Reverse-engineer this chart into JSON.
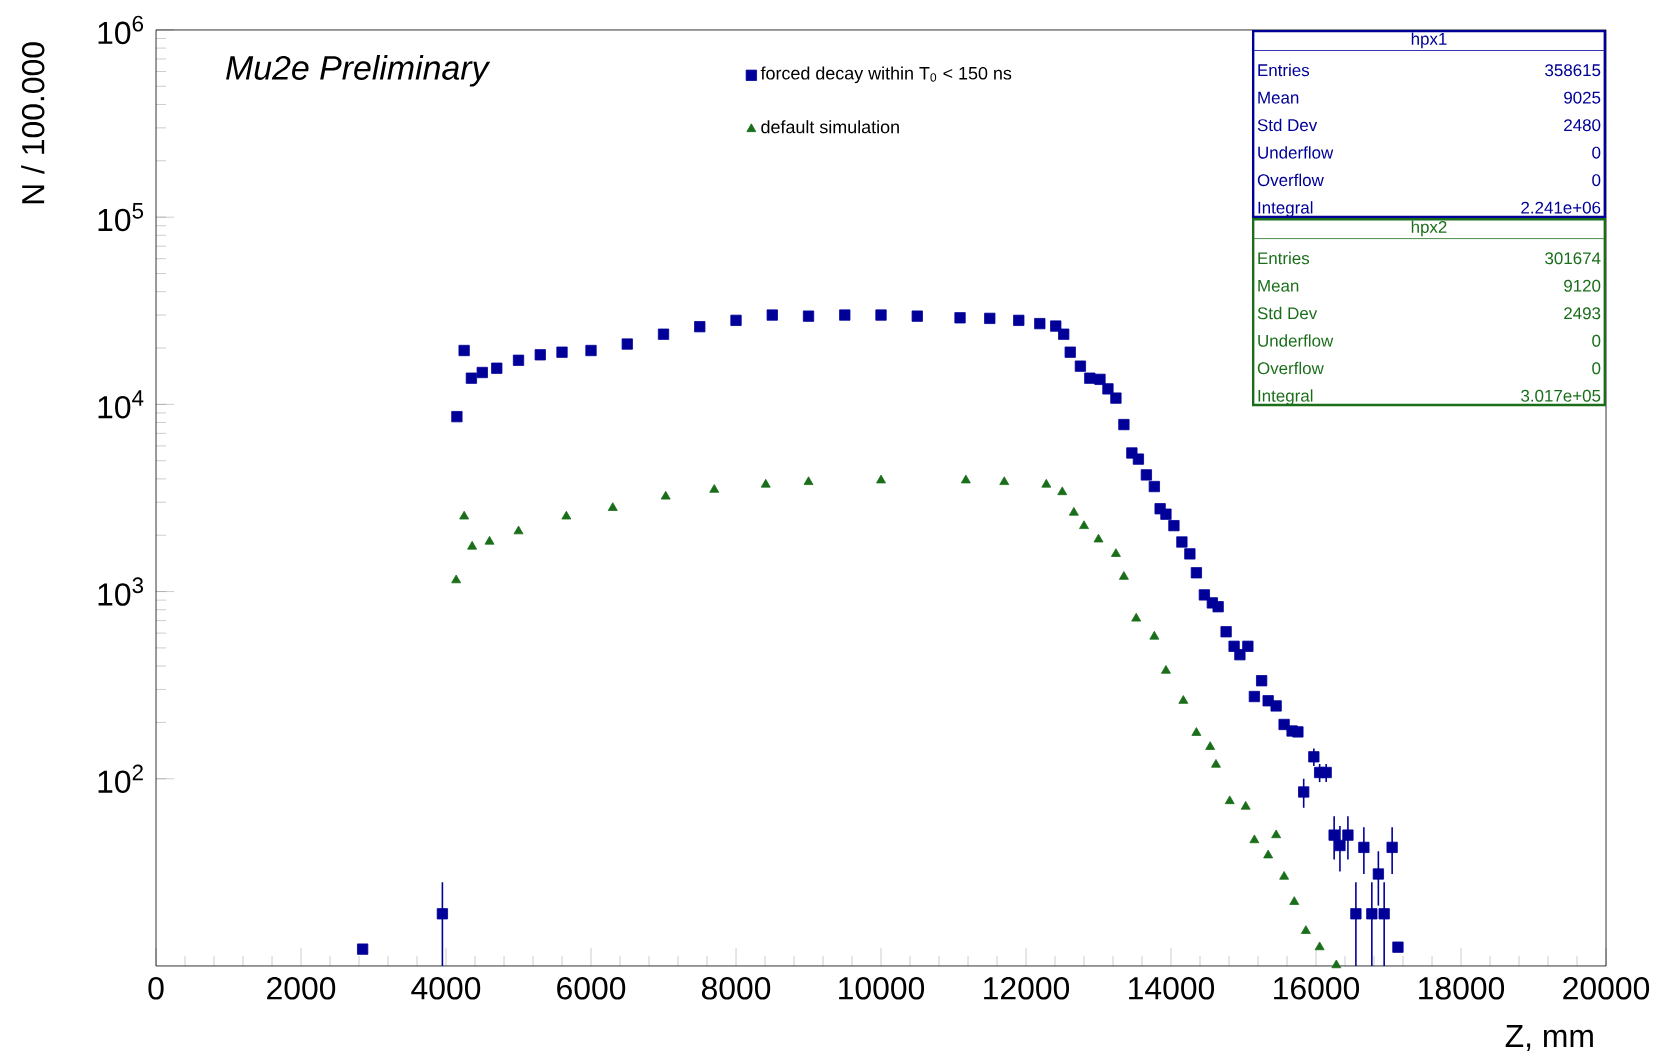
{
  "chart_data": {
    "type": "scatter",
    "xlabel": "Z, mm",
    "ylabel": "N /   100.000",
    "log": "y",
    "grid": false,
    "legend": "top",
    "xlim": [
      0,
      20000
    ],
    "xticks": [
      0,
      2000,
      4000,
      6000,
      8000,
      10000,
      12000,
      14000,
      16000,
      18000,
      20000
    ],
    "ylim": [
      10,
      1000000
    ],
    "yticks": [
      {
        "value": 100,
        "label": "10$^{2}$"
      },
      {
        "value": 1000,
        "label": "10$^{3}$"
      },
      {
        "value": 10000,
        "label": "10$^{4}$"
      },
      {
        "value": 100000,
        "label": "10$^{5}$"
      },
      {
        "value": 1000000,
        "label": "10$^{6}$"
      }
    ],
    "annotations": [
      "*Mu2e Preliminary*",
      "hpx1",
      "Entries",
      "358615",
      "Mean",
      "9025",
      "Std Dev",
      "2480",
      "Underflow",
      "0",
      "Overflow",
      "0",
      "Integral",
      "2.241e+06",
      "hpx2",
      "Entries",
      "301674",
      "Mean",
      "9120",
      "Std Dev",
      "2493",
      "Underflow",
      "0",
      "Overflow",
      "0",
      "Integral",
      "3.017e+05"
    ],
    "series": [
      {
        "name": "forced decay within T$_{0}$ < 150 ns",
        "color": "#000099",
        "marker": "square",
        "x": [
          2850,
          3950,
          4150,
          4250,
          4350,
          4500,
          4700,
          5000,
          5300,
          5600,
          6000,
          6500,
          7000,
          7500,
          8000,
          8500,
          9000,
          9500,
          10000,
          10500,
          11090,
          11500,
          11900,
          12190,
          12410,
          12520,
          12610,
          12750,
          12880,
          13020,
          13130,
          13240,
          13350,
          13460,
          13550,
          13660,
          13770,
          13850,
          13930,
          14040,
          14150,
          14260,
          14350,
          14460,
          14570,
          14650,
          14760,
          14870,
          14950,
          15060,
          15150,
          15250,
          15340,
          15450,
          15560,
          15670,
          15750,
          15830,
          15970,
          16050,
          16140,
          16250,
          16330,
          16440,
          16550,
          16660,
          16770,
          16860,
          16940,
          17050,
          17130
        ],
        "values": [
          12.3,
          19,
          8600,
          19400,
          13800,
          14800,
          15600,
          17200,
          18400,
          19000,
          19400,
          21000,
          23700,
          26000,
          28100,
          30000,
          29600,
          30000,
          30000,
          29600,
          29000,
          28800,
          28100,
          27000,
          26200,
          23700,
          19000,
          16000,
          13800,
          13600,
          12100,
          10800,
          7800,
          5500,
          5100,
          4200,
          3640,
          2770,
          2590,
          2250,
          1840,
          1590,
          1260,
          960,
          870,
          830,
          610,
          510,
          460,
          510,
          275,
          334,
          261,
          245,
          195,
          180,
          178,
          85,
          131,
          108,
          108,
          50,
          44,
          50,
          19,
          43,
          19,
          31,
          19,
          43,
          12.6
        ],
        "errors": [
          null,
          9,
          null,
          null,
          null,
          null,
          null,
          null,
          null,
          null,
          null,
          null,
          null,
          null,
          null,
          null,
          null,
          null,
          null,
          null,
          null,
          null,
          null,
          null,
          null,
          null,
          null,
          null,
          null,
          null,
          null,
          null,
          null,
          null,
          null,
          null,
          null,
          null,
          null,
          null,
          null,
          null,
          null,
          null,
          null,
          null,
          null,
          null,
          null,
          null,
          null,
          null,
          null,
          null,
          null,
          null,
          null,
          15,
          14,
          12,
          12,
          13,
          12,
          13,
          9,
          12,
          9,
          10,
          9,
          12,
          null
        ]
      },
      {
        "name": "default simulation",
        "color": "#1a6e1a",
        "marker": "triangle",
        "x": [
          4140,
          4250,
          4360,
          4600,
          5000,
          5660,
          6300,
          7030,
          7700,
          8410,
          9000,
          10000,
          11170,
          11700,
          12280,
          12500,
          12660,
          12800,
          13000,
          13240,
          13350,
          13520,
          13770,
          13930,
          14170,
          14350,
          14540,
          14620,
          14810,
          15030,
          15150,
          15340,
          15450,
          15560,
          15700,
          15860,
          16050,
          16280
        ],
        "values": [
          1150,
          2520,
          1740,
          1850,
          2100,
          2520,
          2800,
          3220,
          3500,
          3730,
          3850,
          3930,
          3930,
          3850,
          3730,
          3400,
          2640,
          2240,
          1900,
          1590,
          1200,
          718,
          575,
          378,
          261,
          176,
          148,
          119,
          76,
          71,
          47,
          39,
          50,
          30,
          22,
          15.4,
          12.6,
          10.1
        ]
      }
    ]
  }
}
